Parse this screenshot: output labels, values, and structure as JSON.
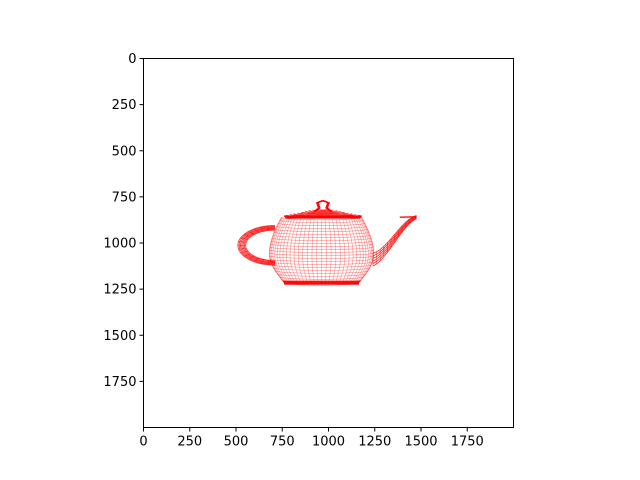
{
  "chart_data": {
    "type": "wireframe",
    "title": "",
    "xlabel": "",
    "ylabel": "",
    "xlim": [
      0,
      2000
    ],
    "ylim": [
      2000,
      0
    ],
    "y_inverted": true,
    "grid": false,
    "legend": null,
    "line_color": "#ff0000",
    "x_ticks": [
      0,
      250,
      500,
      750,
      1000,
      1250,
      1500,
      1750
    ],
    "x_tick_labels": [
      "0",
      "250",
      "500",
      "750",
      "1000",
      "1250",
      "1500",
      "1750"
    ],
    "y_ticks": [
      0,
      250,
      500,
      750,
      1000,
      1250,
      1500,
      1750
    ],
    "y_tick_labels": [
      "0",
      "250",
      "500",
      "750",
      "1000",
      "1250",
      "1500",
      "1750"
    ],
    "object": {
      "name": "teapot",
      "body": {
        "top_left": [
          745,
          860
        ],
        "top_right": [
          1180,
          860
        ],
        "bottom_left": [
          760,
          1215
        ],
        "bottom_right": [
          1165,
          1215
        ],
        "widest_left": 680,
        "widest_right": 1245,
        "widest_y": 1060
      },
      "lid": {
        "knob_top_y": 770,
        "knob_center_x": 970,
        "base_left": 760,
        "base_right": 1180,
        "base_y": 860
      },
      "handle": {
        "outer_left_x": 510,
        "inner_left_x": 560,
        "top_y": 905,
        "bottom_y": 1120
      },
      "spout": {
        "base_x": 1240,
        "base_y": 1010,
        "tip_x": 1475,
        "tip_y": 860
      },
      "mesh_rows": 22,
      "mesh_cols": 34
    }
  }
}
